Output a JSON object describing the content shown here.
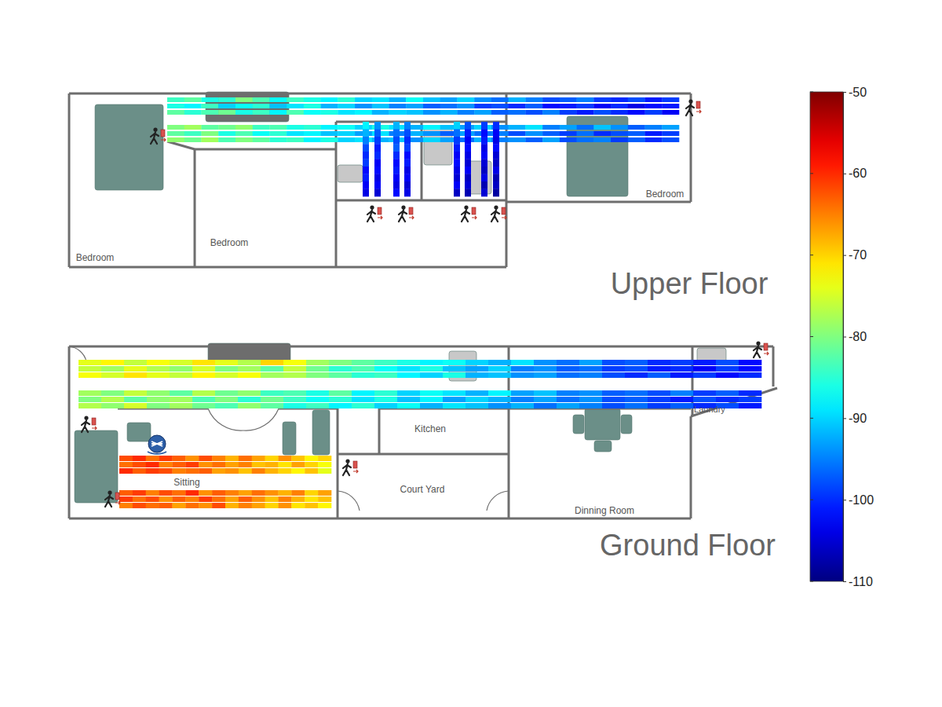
{
  "chart_data": {
    "type": "heatmap",
    "annotations": [
      "Upper Floor",
      "Ground Floor",
      "Bedroom",
      "Bedroom",
      "Bedroom",
      "Kitchen",
      "Sitting",
      "Court Yard",
      "Dinning Room",
      "Laundry"
    ],
    "color_range": [
      -110,
      -50
    ],
    "color_ticks": [
      -50,
      -60,
      -70,
      -80,
      -90,
      -100,
      -110
    ],
    "cells": [
      [
        -84,
        -82,
        -86,
        -85,
        -80,
        -83,
        -87,
        -84,
        -86,
        -88,
        -85,
        -90,
        -89,
        -92,
        -87,
        -91,
        -93,
        -90,
        -94,
        -96,
        -92,
        -95,
        -98,
        -97,
        -95,
        -99,
        -100,
        -98,
        -101,
        -99
      ],
      [
        -86,
        -88,
        -84,
        -90,
        -87,
        -85,
        -91,
        -89,
        -86,
        -92,
        -90,
        -94,
        -91,
        -95,
        -93,
        -97,
        -96,
        -94,
        -99,
        -98,
        -100,
        -97,
        -102,
        -101,
        -99,
        -103,
        -100,
        -104,
        -102,
        -101
      ],
      [
        -82,
        -85,
        -83,
        -81,
        -86,
        -84,
        -88,
        -83,
        -87,
        -86,
        -89,
        -88,
        -92,
        -90,
        -91,
        -94,
        -92,
        -95,
        -93,
        -97,
        -96,
        -98,
        -95,
        -99,
        -101,
        -98,
        -100,
        -102,
        -99,
        -103
      ],
      [
        -80,
        -78,
        -82,
        -81,
        -79,
        -84,
        -83,
        -86,
        -85,
        -88,
        -87,
        -90,
        -86,
        -89,
        -92,
        -88,
        -91,
        -93,
        -90,
        -94,
        -92,
        -89,
        -95,
        -93,
        -96,
        -91,
        -94,
        -97,
        -95,
        -93
      ],
      [
        -82,
        -84,
        -80,
        -86,
        -83,
        -87,
        -85,
        -89,
        -88,
        -91,
        -90,
        -93,
        -89,
        -95,
        -92,
        -94,
        -97,
        -93,
        -96,
        -95,
        -98,
        -94,
        -97,
        -99,
        -96,
        -100,
        -98,
        -97,
        -101,
        -99
      ],
      [
        -79,
        -81,
        -78,
        -83,
        -80,
        -82,
        -85,
        -84,
        -88,
        -86,
        -90,
        -89,
        -92,
        -91,
        -94,
        -90,
        -93,
        -96,
        -92,
        -95,
        -94,
        -97,
        -93,
        -98,
        -96,
        -95,
        -99,
        -97,
        -100,
        -98
      ],
      [
        -88,
        -92,
        -95,
        -98,
        -100,
        -99,
        -102,
        -101,
        -103,
        -104
      ],
      [
        -94,
        -97,
        -99,
        -101,
        -100,
        -103,
        -102,
        -104,
        -103,
        -105
      ],
      [
        -92,
        -96,
        -98,
        -97,
        -100,
        -102,
        -101,
        -103,
        -104,
        -102
      ],
      [
        -95,
        -98,
        -100,
        -99,
        -102,
        -101,
        -104,
        -103,
        -105,
        -104
      ],
      [
        -90,
        -96,
        -99,
        -101,
        -103,
        -102,
        -104,
        -105,
        -103,
        -106
      ],
      [
        -98,
        -101,
        -103,
        -102,
        -104,
        -105,
        -103,
        -106,
        -105,
        -107
      ],
      [
        -99,
        -102,
        -101,
        -104,
        -103,
        -105,
        -106,
        -104,
        -107,
        -105
      ],
      [
        -100,
        -103,
        -104,
        -102,
        -105,
        -106,
        -104,
        -107,
        -106,
        -108
      ],
      [
        -74,
        -72,
        -76,
        -73,
        -75,
        -71,
        -74,
        -77,
        -70,
        -73,
        -78,
        -80,
        -82,
        -84,
        -86,
        -88,
        -87,
        -90,
        -92,
        -89,
        -94,
        -96,
        -93,
        -98,
        -97,
        -100,
        -99,
        -101,
        -98,
        -102
      ],
      [
        -76,
        -78,
        -74,
        -77,
        -79,
        -75,
        -80,
        -78,
        -82,
        -76,
        -81,
        -85,
        -83,
        -87,
        -89,
        -86,
        -91,
        -93,
        -90,
        -95,
        -94,
        -97,
        -96,
        -99,
        -98,
        -101,
        -100,
        -103,
        -99,
        -102
      ],
      [
        -73,
        -75,
        -71,
        -74,
        -76,
        -72,
        -75,
        -73,
        -78,
        -77,
        -80,
        -82,
        -85,
        -84,
        -88,
        -90,
        -86,
        -92,
        -91,
        -94,
        -93,
        -96,
        -95,
        -98,
        -100,
        -97,
        -101,
        -99,
        -102,
        -100
      ],
      [
        -78,
        -80,
        -76,
        -79,
        -82,
        -77,
        -81,
        -79,
        -84,
        -83,
        -86,
        -82,
        -88,
        -85,
        -90,
        -87,
        -89,
        -92,
        -88,
        -93,
        -91,
        -95,
        -94,
        -97,
        -96,
        -98,
        -95,
        -99,
        -97,
        -100
      ],
      [
        -80,
        -77,
        -82,
        -79,
        -78,
        -83,
        -80,
        -85,
        -81,
        -84,
        -87,
        -85,
        -89,
        -86,
        -91,
        -88,
        -93,
        -90,
        -92,
        -95,
        -93,
        -96,
        -94,
        -98,
        -97,
        -99,
        -101,
        -98,
        -100,
        -99
      ],
      [
        -77,
        -79,
        -75,
        -80,
        -78,
        -81,
        -83,
        -79,
        -82,
        -86,
        -84,
        -88,
        -85,
        -90,
        -87,
        -92,
        -89,
        -91,
        -94,
        -92,
        -96,
        -93,
        -95,
        -98,
        -96,
        -99,
        -97,
        -100,
        -98,
        -101
      ],
      [
        -62,
        -60,
        -64,
        -61,
        -63,
        -66,
        -62,
        -65,
        -68,
        -64,
        -67,
        -70,
        -66,
        -69,
        -72,
        -70
      ],
      [
        -64,
        -62,
        -60,
        -65,
        -63,
        -61,
        -66,
        -64,
        -67,
        -65,
        -69,
        -68,
        -71,
        -67,
        -70,
        -73
      ],
      [
        -60,
        -63,
        -61,
        -62,
        -65,
        -64,
        -63,
        -67,
        -66,
        -69,
        -65,
        -68,
        -70,
        -72,
        -69,
        -74
      ],
      [
        -63,
        -61,
        -65,
        -62,
        -64,
        -60,
        -66,
        -63,
        -65,
        -67,
        -64,
        -66,
        -68,
        -65,
        -70,
        -67
      ],
      [
        -61,
        -64,
        -62,
        -66,
        -63,
        -65,
        -61,
        -64,
        -67,
        -63,
        -66,
        -69,
        -65,
        -68,
        -71,
        -69
      ],
      [
        -65,
        -62,
        -64,
        -63,
        -67,
        -64,
        -66,
        -62,
        -68,
        -65,
        -67,
        -70,
        -66,
        -71,
        -69,
        -72
      ]
    ]
  }
}
